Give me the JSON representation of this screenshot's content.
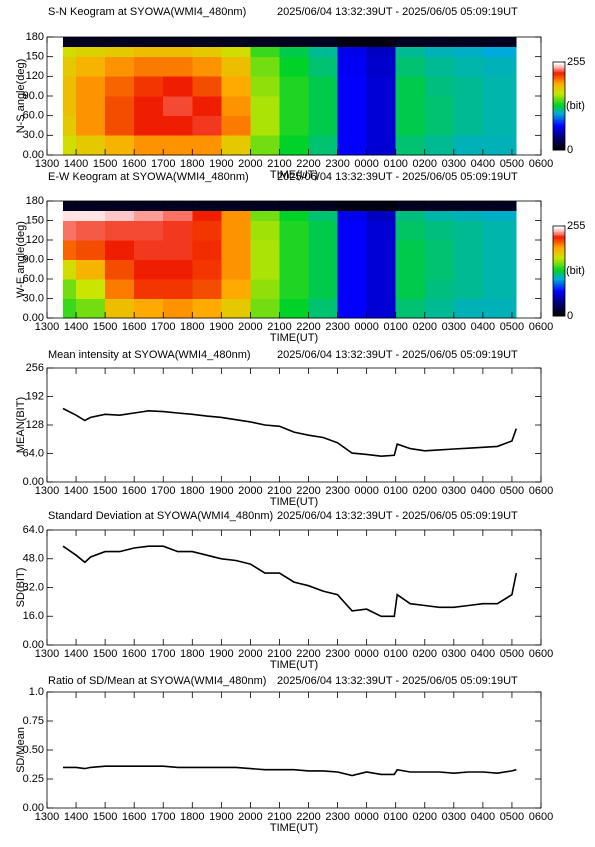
{
  "chart_data": [
    {
      "type": "heatmap",
      "title": "S-N Keogram at SYOWA(WMI4_480nm)",
      "time_range": "2025/06/04 13:32:39UT - 2025/06/05 05:09:19UT",
      "xlabel": "TIME(UT)",
      "ylabel": "N-S angle(deg)",
      "zlabel": "(bit)",
      "xlim": [
        13,
        30
      ],
      "ylim": [
        0,
        180
      ],
      "zlim": [
        0,
        255
      ],
      "zticks": [
        0,
        255
      ],
      "xticks": [
        {
          "value": 13,
          "label": "1300"
        },
        {
          "value": 14,
          "label": "1400"
        },
        {
          "value": 15,
          "label": "1500"
        },
        {
          "value": 16,
          "label": "1600"
        },
        {
          "value": 17,
          "label": "1700"
        },
        {
          "value": 18,
          "label": "1800"
        },
        {
          "value": 19,
          "label": "1900"
        },
        {
          "value": 20,
          "label": "2000"
        },
        {
          "value": 21,
          "label": "2100"
        },
        {
          "value": 22,
          "label": "2200"
        },
        {
          "value": 23,
          "label": "2300"
        },
        {
          "value": 24,
          "label": "0000"
        },
        {
          "value": 25,
          "label": "0100"
        },
        {
          "value": 26,
          "label": "0200"
        },
        {
          "value": 27,
          "label": "0300"
        },
        {
          "value": 28,
          "label": "0400"
        },
        {
          "value": 29,
          "label": "0500"
        },
        {
          "value": 30,
          "label": "0600"
        }
      ],
      "yticks": [
        {
          "value": 0,
          "label": "0.00"
        },
        {
          "value": 30,
          "label": "30.0"
        },
        {
          "value": 60,
          "label": "60.0"
        },
        {
          "value": 90,
          "label": "90.0"
        },
        120,
        150,
        180
      ],
      "x_edges": [
        13.55,
        14,
        15,
        16,
        17,
        18,
        19,
        20,
        21,
        22,
        23,
        24,
        25,
        26,
        27,
        28,
        29,
        29.15
      ],
      "y_edges": [
        0,
        30,
        60,
        90,
        120,
        150,
        165,
        180
      ],
      "z": [
        [
          170,
          180,
          190,
          200,
          200,
          200,
          180,
          150,
          130,
          120,
          70,
          60,
          120,
          115,
          110,
          110,
          110
        ],
        [
          180,
          200,
          215,
          225,
          225,
          228,
          205,
          160,
          135,
          125,
          70,
          60,
          125,
          120,
          115,
          112,
          112
        ],
        [
          185,
          200,
          215,
          225,
          230,
          225,
          200,
          160,
          135,
          125,
          70,
          60,
          125,
          120,
          115,
          112,
          112
        ],
        [
          185,
          200,
          210,
          220,
          225,
          215,
          195,
          155,
          135,
          125,
          70,
          60,
          125,
          118,
          115,
          112,
          112
        ],
        [
          180,
          190,
          200,
          205,
          205,
          200,
          185,
          150,
          130,
          120,
          68,
          58,
          120,
          115,
          112,
          110,
          110
        ],
        [
          170,
          175,
          180,
          185,
          185,
          180,
          170,
          140,
          125,
          115,
          65,
          55,
          115,
          110,
          108,
          105,
          105
        ],
        [
          10,
          10,
          10,
          10,
          10,
          10,
          10,
          10,
          10,
          10,
          5,
          5,
          10,
          10,
          10,
          10,
          10
        ]
      ]
    },
    {
      "type": "heatmap",
      "title": "E-W Keogram at SYOWA(WMI4_480nm)",
      "time_range": "2025/06/04 13:32:39UT - 2025/06/05 05:09:19UT",
      "xlabel": "TIME(UT)",
      "ylabel": "W-E angle(deg)",
      "zlabel": "(bit)",
      "xlim": [
        13,
        30
      ],
      "ylim": [
        0,
        180
      ],
      "zlim": [
        0,
        255
      ],
      "zticks": [
        0,
        255
      ],
      "xticks": [
        {
          "value": 13,
          "label": "1300"
        },
        {
          "value": 14,
          "label": "1400"
        },
        {
          "value": 15,
          "label": "1500"
        },
        {
          "value": 16,
          "label": "1600"
        },
        {
          "value": 17,
          "label": "1700"
        },
        {
          "value": 18,
          "label": "1800"
        },
        {
          "value": 19,
          "label": "1900"
        },
        {
          "value": 20,
          "label": "2000"
        },
        {
          "value": 21,
          "label": "2100"
        },
        {
          "value": 22,
          "label": "2200"
        },
        {
          "value": 23,
          "label": "2300"
        },
        {
          "value": 24,
          "label": "0000"
        },
        {
          "value": 25,
          "label": "0100"
        },
        {
          "value": 26,
          "label": "0200"
        },
        {
          "value": 27,
          "label": "0300"
        },
        {
          "value": 28,
          "label": "0400"
        },
        {
          "value": 29,
          "label": "0500"
        },
        {
          "value": 30,
          "label": "0600"
        }
      ],
      "yticks": [
        {
          "value": 0,
          "label": "0.00"
        },
        {
          "value": 30,
          "label": "30.0"
        },
        {
          "value": 60,
          "label": "60.0"
        },
        {
          "value": 90,
          "label": "90.0"
        },
        120,
        150,
        180
      ],
      "x_edges": [
        13.55,
        14,
        15,
        16,
        17,
        18,
        19,
        20,
        21,
        22,
        23,
        24,
        25,
        26,
        27,
        28,
        29,
        29.15
      ],
      "y_edges": [
        0,
        30,
        60,
        90,
        120,
        150,
        165,
        180
      ],
      "z": [
        [
          140,
          150,
          185,
          195,
          200,
          195,
          180,
          150,
          130,
          120,
          70,
          60,
          120,
          115,
          110,
          110,
          110
        ],
        [
          150,
          165,
          205,
          220,
          220,
          215,
          195,
          155,
          135,
          125,
          70,
          60,
          125,
          118,
          115,
          112,
          112
        ],
        [
          170,
          190,
          215,
          225,
          225,
          220,
          200,
          160,
          135,
          125,
          70,
          60,
          125,
          120,
          115,
          112,
          112
        ],
        [
          210,
          215,
          225,
          228,
          228,
          222,
          200,
          160,
          135,
          125,
          70,
          60,
          125,
          120,
          115,
          112,
          112
        ],
        [
          235,
          232,
          230,
          230,
          228,
          220,
          200,
          158,
          135,
          125,
          70,
          60,
          122,
          118,
          115,
          112,
          112
        ],
        [
          250,
          250,
          245,
          240,
          235,
          225,
          200,
          150,
          130,
          120,
          65,
          55,
          118,
          112,
          110,
          108,
          108
        ],
        [
          10,
          10,
          10,
          10,
          10,
          10,
          10,
          10,
          10,
          10,
          5,
          5,
          10,
          10,
          10,
          10,
          10
        ]
      ]
    },
    {
      "type": "line",
      "title": "Mean intensity at SYOWA(WMI4_480nm)",
      "time_range": "2025/06/04 13:32:39UT - 2025/06/05 05:09:19UT",
      "xlabel": "TIME(UT)",
      "ylabel": "MEAN(BIT)",
      "color": "#000000",
      "xlim": [
        13,
        30
      ],
      "ylim": [
        0,
        256
      ],
      "xticks": [
        {
          "value": 13,
          "label": "1300"
        },
        {
          "value": 14,
          "label": "1400"
        },
        {
          "value": 15,
          "label": "1500"
        },
        {
          "value": 16,
          "label": "1600"
        },
        {
          "value": 17,
          "label": "1700"
        },
        {
          "value": 18,
          "label": "1800"
        },
        {
          "value": 19,
          "label": "1900"
        },
        {
          "value": 20,
          "label": "2000"
        },
        {
          "value": 21,
          "label": "2100"
        },
        {
          "value": 22,
          "label": "2200"
        },
        {
          "value": 23,
          "label": "2300"
        },
        {
          "value": 24,
          "label": "0000"
        },
        {
          "value": 25,
          "label": "0100"
        },
        {
          "value": 26,
          "label": "0200"
        },
        {
          "value": 27,
          "label": "0300"
        },
        {
          "value": 28,
          "label": "0400"
        },
        {
          "value": 29,
          "label": "0500"
        },
        {
          "value": 30,
          "label": "0600"
        }
      ],
      "yticks": [
        {
          "value": 0,
          "label": "0.00"
        },
        {
          "value": 64,
          "label": "64.0"
        },
        128,
        192,
        256
      ],
      "x": [
        13.55,
        14,
        14.3,
        14.5,
        15,
        15.5,
        16,
        16.5,
        17,
        17.5,
        18,
        18.5,
        19,
        19.5,
        20,
        20.5,
        21,
        21.5,
        22,
        22.5,
        23,
        23.5,
        24,
        24.5,
        24.95,
        25.05,
        25.5,
        26,
        26.5,
        27,
        27.5,
        28,
        28.5,
        29,
        29.15
      ],
      "values": [
        165,
        150,
        138,
        145,
        152,
        150,
        155,
        160,
        158,
        155,
        152,
        148,
        145,
        140,
        135,
        128,
        125,
        112,
        105,
        100,
        88,
        65,
        62,
        58,
        60,
        85,
        75,
        70,
        72,
        74,
        76,
        78,
        80,
        92,
        120
      ]
    },
    {
      "type": "line",
      "title": "Standard Deviation at SYOWA(WMI4_480nm)",
      "time_range": "2025/06/04 13:32:39UT - 2025/06/05 05:09:19UT",
      "xlabel": "TIME(UT)",
      "ylabel": "SD(BIT)",
      "color": "#000000",
      "xlim": [
        13,
        30
      ],
      "ylim": [
        0,
        64
      ],
      "xticks": [
        {
          "value": 13,
          "label": "1300"
        },
        {
          "value": 14,
          "label": "1400"
        },
        {
          "value": 15,
          "label": "1500"
        },
        {
          "value": 16,
          "label": "1600"
        },
        {
          "value": 17,
          "label": "1700"
        },
        {
          "value": 18,
          "label": "1800"
        },
        {
          "value": 19,
          "label": "1900"
        },
        {
          "value": 20,
          "label": "2000"
        },
        {
          "value": 21,
          "label": "2100"
        },
        {
          "value": 22,
          "label": "2200"
        },
        {
          "value": 23,
          "label": "2300"
        },
        {
          "value": 24,
          "label": "0000"
        },
        {
          "value": 25,
          "label": "0100"
        },
        {
          "value": 26,
          "label": "0200"
        },
        {
          "value": 27,
          "label": "0300"
        },
        {
          "value": 28,
          "label": "0400"
        },
        {
          "value": 29,
          "label": "0500"
        },
        {
          "value": 30,
          "label": "0600"
        }
      ],
      "yticks": [
        {
          "value": 0,
          "label": "0.00"
        },
        {
          "value": 16,
          "label": "16.0"
        },
        {
          "value": 32,
          "label": "32.0"
        },
        {
          "value": 48,
          "label": "48.0"
        },
        {
          "value": 64,
          "label": "64.0"
        }
      ],
      "x": [
        13.55,
        14,
        14.3,
        14.5,
        15,
        15.5,
        16,
        16.5,
        17,
        17.5,
        18,
        18.5,
        19,
        19.5,
        20,
        20.5,
        21,
        21.5,
        22,
        22.5,
        23,
        23.5,
        24,
        24.5,
        24.95,
        25.05,
        25.5,
        26,
        26.5,
        27,
        27.5,
        28,
        28.5,
        29,
        29.15
      ],
      "values": [
        55,
        50,
        46,
        49,
        52,
        52,
        54,
        55,
        55,
        52,
        52,
        50,
        48,
        47,
        45,
        40,
        40,
        35,
        33,
        30,
        28,
        19,
        20,
        16,
        16,
        28,
        23,
        22,
        21,
        21,
        22,
        23,
        23,
        28,
        40
      ]
    },
    {
      "type": "line",
      "title": "Ratio of SD/Mean at SYOWA(WMI4_480nm)",
      "time_range": "2025/06/04 13:32:39UT - 2025/06/05 05:09:19UT",
      "xlabel": "TIME(UT)",
      "ylabel": "SD/Mean",
      "color": "#000000",
      "xlim": [
        13,
        30
      ],
      "ylim": [
        0,
        1
      ],
      "xticks": [
        {
          "value": 13,
          "label": "1300"
        },
        {
          "value": 14,
          "label": "1400"
        },
        {
          "value": 15,
          "label": "1500"
        },
        {
          "value": 16,
          "label": "1600"
        },
        {
          "value": 17,
          "label": "1700"
        },
        {
          "value": 18,
          "label": "1800"
        },
        {
          "value": 19,
          "label": "1900"
        },
        {
          "value": 20,
          "label": "2000"
        },
        {
          "value": 21,
          "label": "2100"
        },
        {
          "value": 22,
          "label": "2200"
        },
        {
          "value": 23,
          "label": "2300"
        },
        {
          "value": 24,
          "label": "0000"
        },
        {
          "value": 25,
          "label": "0100"
        },
        {
          "value": 26,
          "label": "0200"
        },
        {
          "value": 27,
          "label": "0300"
        },
        {
          "value": 28,
          "label": "0400"
        },
        {
          "value": 29,
          "label": "0500"
        },
        {
          "value": 30,
          "label": "0600"
        }
      ],
      "yticks": [
        {
          "value": 0,
          "label": "0.00"
        },
        0.25,
        {
          "value": 0.5,
          "label": "0.50"
        },
        0.75,
        {
          "value": 1,
          "label": "1.0"
        }
      ],
      "x": [
        13.55,
        14,
        14.3,
        14.5,
        15,
        15.5,
        16,
        16.5,
        17,
        17.5,
        18,
        18.5,
        19,
        19.5,
        20,
        20.5,
        21,
        21.5,
        22,
        22.5,
        23,
        23.5,
        24,
        24.5,
        24.95,
        25.05,
        25.5,
        26,
        26.5,
        27,
        27.5,
        28,
        28.5,
        29,
        29.15
      ],
      "values": [
        0.35,
        0.35,
        0.34,
        0.35,
        0.36,
        0.36,
        0.36,
        0.36,
        0.36,
        0.35,
        0.35,
        0.35,
        0.35,
        0.35,
        0.34,
        0.33,
        0.33,
        0.33,
        0.32,
        0.32,
        0.31,
        0.28,
        0.31,
        0.29,
        0.29,
        0.33,
        0.31,
        0.31,
        0.31,
        0.3,
        0.31,
        0.31,
        0.3,
        0.32,
        0.33
      ]
    }
  ]
}
